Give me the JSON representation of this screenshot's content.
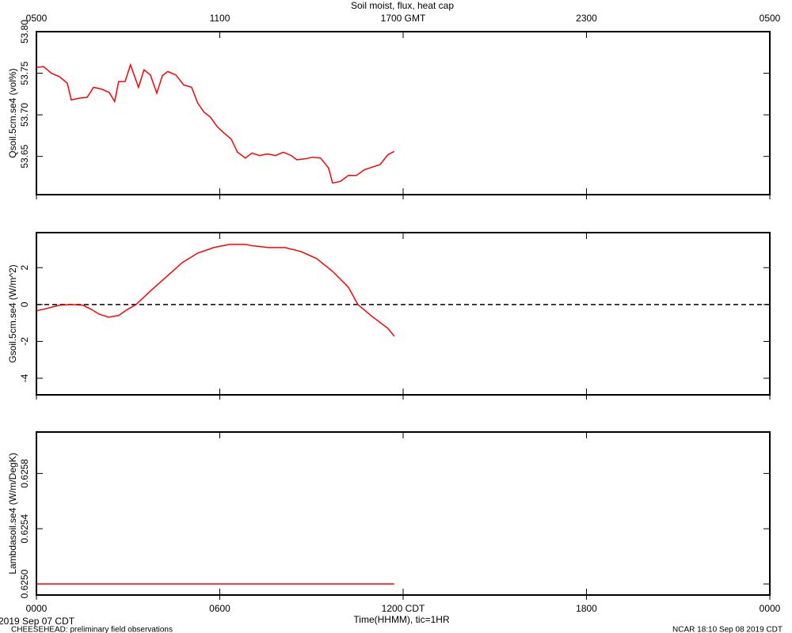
{
  "chart_data": [
    {
      "type": "line",
      "title": "Soil moist, flux, heat cap",
      "ylabel": "Qsoil.5cm.se4 (vol%)",
      "xlim": [
        0,
        24
      ],
      "x2ticks": [
        {
          "value": 0,
          "label": "0500"
        },
        {
          "value": 6,
          "label": "1100"
        },
        {
          "value": 12,
          "label": "1700 GMT"
        },
        {
          "value": 18,
          "label": "2300"
        },
        {
          "value": 24,
          "label": "0500"
        }
      ],
      "ylim": [
        53.604,
        53.8
      ],
      "yticks": [
        {
          "value": 53.8,
          "label": "53.80"
        },
        53.75,
        {
          "value": 53.7,
          "label": "53.70"
        },
        53.65
      ],
      "x": [
        0,
        0.23,
        0.49,
        0.75,
        1.01,
        1.14,
        1.4,
        1.66,
        1.87,
        2.12,
        2.38,
        2.56,
        2.69,
        2.9,
        3.08,
        3.34,
        3.52,
        3.73,
        3.94,
        4.12,
        4.3,
        4.56,
        4.82,
        5.08,
        5.28,
        5.49,
        5.7,
        5.91,
        6.14,
        6.37,
        6.58,
        6.84,
        7.05,
        7.31,
        7.56,
        7.82,
        8.08,
        8.34,
        8.52,
        8.78,
        9.04,
        9.3,
        9.56,
        9.69,
        9.95,
        10.21,
        10.47,
        10.73,
        10.98,
        11.24,
        11.5,
        11.71
      ],
      "series": [
        {
          "color": "#ff0000",
          "values": [
            53.757,
            53.758,
            53.75,
            53.746,
            53.738,
            53.718,
            53.72,
            53.721,
            53.733,
            53.731,
            53.727,
            53.716,
            53.74,
            53.74,
            53.76,
            53.733,
            53.754,
            53.748,
            53.726,
            53.747,
            53.752,
            53.748,
            53.736,
            53.733,
            53.714,
            53.703,
            53.697,
            53.686,
            53.678,
            53.671,
            53.655,
            53.648,
            53.654,
            53.651,
            53.653,
            53.651,
            53.655,
            53.651,
            53.646,
            53.647,
            53.649,
            53.648,
            53.636,
            53.618,
            53.62,
            53.627,
            53.627,
            53.634,
            53.637,
            53.64,
            53.652,
            53.656
          ]
        }
      ]
    },
    {
      "type": "line",
      "ylabel": "Gsoil.5cm.se4 (W/m^2)",
      "xlim": [
        0,
        24
      ],
      "ylim": [
        -4.9,
        3.9
      ],
      "yticks": [
        2,
        0,
        -2,
        -4
      ],
      "reference_line": 0,
      "x": [
        0,
        0.36,
        0.75,
        1.14,
        1.53,
        1.79,
        2.05,
        2.36,
        2.69,
        2.95,
        3.26,
        3.73,
        4.25,
        4.77,
        5.28,
        5.8,
        6.32,
        6.84,
        7.1,
        7.62,
        8.13,
        8.65,
        9.17,
        9.69,
        10.21,
        10.52,
        10.98,
        11.5,
        11.71
      ],
      "series": [
        {
          "color": "#ff0000",
          "values": [
            -0.34,
            -0.21,
            -0.04,
            0,
            -0.04,
            -0.26,
            -0.52,
            -0.69,
            -0.6,
            -0.3,
            0,
            0.73,
            1.5,
            2.27,
            2.79,
            3.09,
            3.26,
            3.26,
            3.18,
            3.09,
            3.09,
            2.88,
            2.49,
            1.8,
            0.94,
            0,
            -0.64,
            -1.29,
            -1.72
          ]
        }
      ]
    },
    {
      "type": "line",
      "ylabel": "Lambdasoil.se4 (W/m/DegK)",
      "xlabel": "Time(HHMM), tic=1HR",
      "xlim": [
        0,
        24
      ],
      "xticks": [
        {
          "value": 0,
          "label": "0000"
        },
        {
          "value": 6,
          "label": "0600"
        },
        {
          "value": 12,
          "label": "1200 CDT"
        },
        {
          "value": 18,
          "label": "1800"
        },
        {
          "value": 24,
          "label": "0000"
        }
      ],
      "ylim": [
        0.62492,
        0.6261
      ],
      "yticks": [
        {
          "value": 0.6258,
          "label": "0.6258"
        },
        {
          "value": 0.6254,
          "label": "0.6254"
        },
        {
          "value": 0.625,
          "label": "0.6250"
        }
      ],
      "x": [
        0,
        11.71
      ],
      "series": [
        {
          "color": "#ff0000",
          "values": [
            0.625,
            0.625
          ]
        }
      ]
    }
  ],
  "footer": {
    "date": "2019 Sep 07 CDT",
    "project": "CHEESEHEAD: preliminary field observations",
    "credit": "NCAR 18:10 Sep 08 2019 CDT"
  }
}
